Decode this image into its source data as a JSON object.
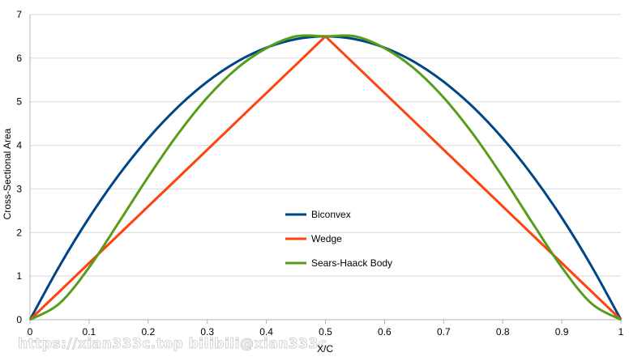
{
  "chart_data": {
    "type": "line",
    "xlabel": "X/C",
    "ylabel": "Cross-Sectional Area",
    "xlim": [
      0,
      1
    ],
    "ylim": [
      0,
      7
    ],
    "x_ticks": [
      "0",
      "0.1",
      "0.2",
      "0.3",
      "0.4",
      "0.5",
      "0.6",
      "0.7",
      "0.8",
      "0.9",
      "1"
    ],
    "y_ticks": [
      "0",
      "1",
      "2",
      "3",
      "4",
      "5",
      "6",
      "7"
    ],
    "grid": "horizontal",
    "legend_position": "center",
    "x": [
      0,
      0.05,
      0.1,
      0.15,
      0.2,
      0.25,
      0.3,
      0.35,
      0.4,
      0.45,
      0.5,
      0.55,
      0.6,
      0.65,
      0.7,
      0.75,
      0.8,
      0.85,
      0.9,
      0.95,
      1
    ],
    "series": [
      {
        "name": "Biconvex",
        "color": "#004586",
        "values": [
          0,
          1.235,
          2.34,
          3.315,
          4.16,
          4.875,
          5.46,
          5.915,
          6.24,
          6.435,
          6.5,
          6.435,
          6.24,
          5.915,
          5.46,
          4.875,
          4.16,
          3.315,
          2.34,
          1.235,
          0
        ]
      },
      {
        "name": "Wedge",
        "color": "#ff420e",
        "values": [
          0,
          0.65,
          1.3,
          1.95,
          2.6,
          3.25,
          3.9,
          4.55,
          5.2,
          5.85,
          6.5,
          5.85,
          5.2,
          4.55,
          3.9,
          3.25,
          2.6,
          1.95,
          1.3,
          0.65,
          0
        ]
      },
      {
        "name": "Sears-Haack Body",
        "color": "#579d1c",
        "values": [
          0,
          0.375,
          1.2,
          2.227,
          3.276,
          4.254,
          5.096,
          5.763,
          6.23,
          6.5,
          6.5,
          6.5,
          6.23,
          5.763,
          5.096,
          4.254,
          3.276,
          2.227,
          1.2,
          0.375,
          0
        ]
      }
    ]
  },
  "watermark": "https://xian333c.top bilibili@xian333c"
}
